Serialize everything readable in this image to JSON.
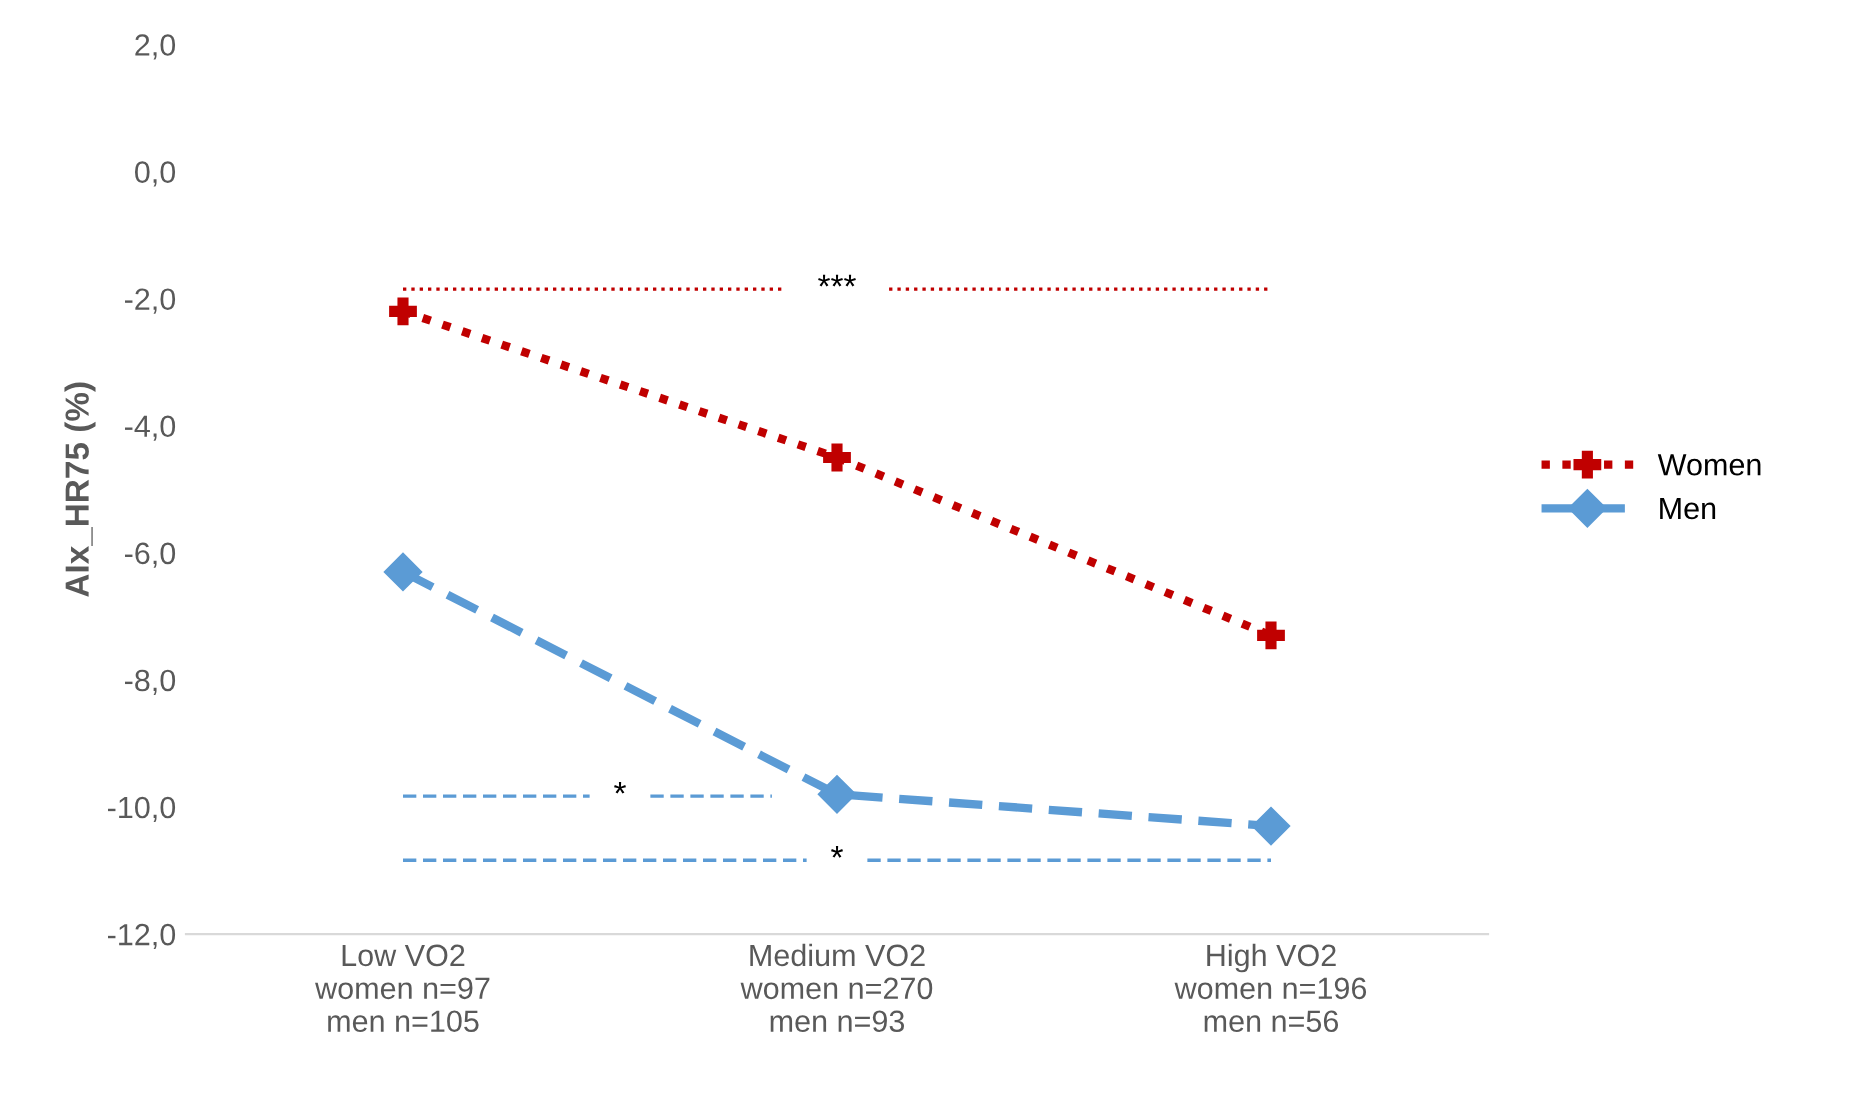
{
  "chart_data": {
    "type": "line",
    "ylabel": "AIx_HR75 (%)",
    "categories": [
      "Low VO2\nwomen n=97\nmen n=105",
      "Medium VO2\nwomen n=270\nmen n=93",
      "High VO2\nwomen n=196\nmen n=56"
    ],
    "series": [
      {
        "name": "Women",
        "color": "#c00000",
        "marker": "cross",
        "line_style": "dotted",
        "values": [
          -2.2,
          -4.5,
          -7.3
        ]
      },
      {
        "name": "Men",
        "color": "#5b9bd5",
        "marker": "diamond",
        "line_style": "dashed",
        "values": [
          -6.3,
          -9.8,
          -10.3
        ]
      }
    ],
    "ylim": [
      -12,
      2
    ],
    "yticks": [
      {
        "value": 2,
        "label": "2,0"
      },
      {
        "value": 0,
        "label": "0,0"
      },
      {
        "value": -2,
        "label": "-2,0"
      },
      {
        "value": -4,
        "label": "-4,0"
      },
      {
        "value": -6,
        "label": "-6,0"
      },
      {
        "value": -8,
        "label": "-8,0"
      },
      {
        "value": -10,
        "label": "-10,0"
      },
      {
        "value": -12,
        "label": "-12,0"
      }
    ],
    "annotations": [
      "***",
      "*",
      "*"
    ],
    "legend": "right",
    "grid": false
  }
}
